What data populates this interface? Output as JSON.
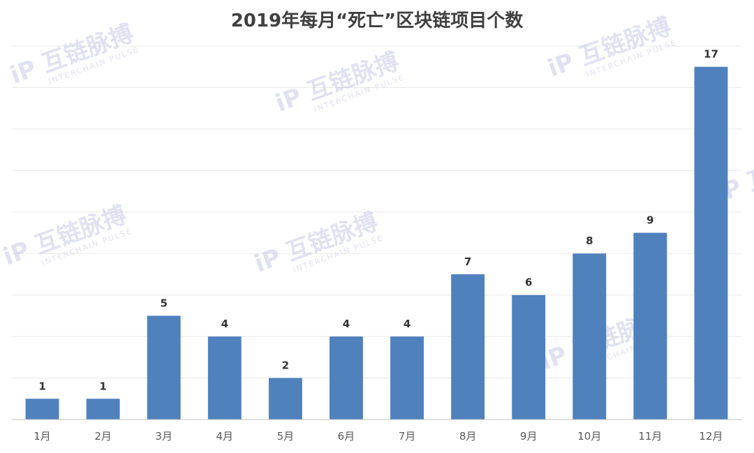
{
  "chart_data": {
    "type": "bar",
    "title": "2019年每月“死亡”区块链项目个数",
    "categories": [
      "1月",
      "2月",
      "3月",
      "4月",
      "5月",
      "6月",
      "7月",
      "8月",
      "9月",
      "10月",
      "11月",
      "12月"
    ],
    "values": [
      1,
      1,
      5,
      4,
      2,
      4,
      4,
      7,
      6,
      8,
      9,
      17
    ],
    "xlabel": "",
    "ylabel": "",
    "ylim": [
      0,
      18
    ],
    "grid": true,
    "bar_color": "#4f81bd"
  },
  "watermark": {
    "text": "互链脉搏",
    "subtext": "INTERCHAIN PULSE"
  }
}
